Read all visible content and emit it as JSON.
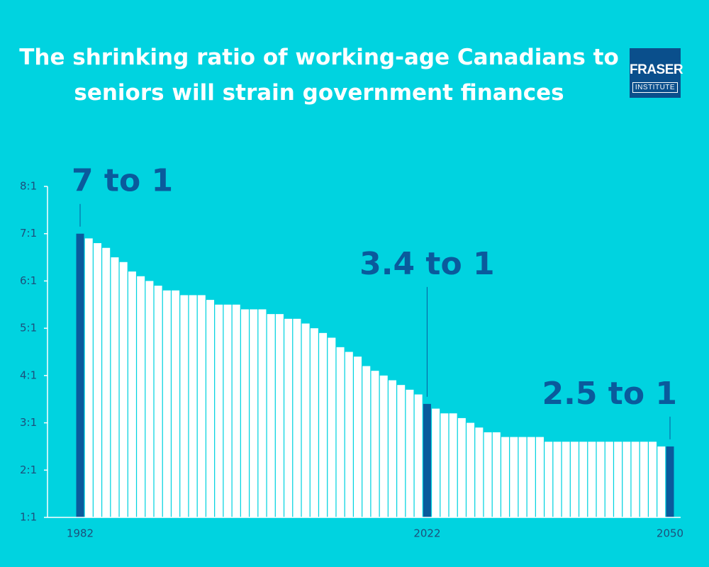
{
  "logo": {
    "name": "FRASER",
    "sub": "INSTITUTE"
  },
  "chart_data": {
    "type": "bar",
    "title": "The shrinking ratio of working-age Canadians to seniors will strain government finances",
    "categories": [
      "1982",
      null,
      null,
      null,
      null,
      null,
      null,
      null,
      null,
      null,
      null,
      null,
      null,
      null,
      null,
      null,
      null,
      null,
      null,
      null,
      null,
      null,
      null,
      null,
      null,
      null,
      null,
      null,
      null,
      null,
      null,
      null,
      null,
      null,
      null,
      null,
      null,
      null,
      null,
      null,
      "2022",
      null,
      null,
      null,
      null,
      null,
      null,
      null,
      null,
      null,
      null,
      null,
      null,
      null,
      null,
      null,
      null,
      null,
      null,
      null,
      null,
      null,
      null,
      null,
      null,
      null,
      null,
      null,
      "2050"
    ],
    "values": [
      7.0,
      6.9,
      6.8,
      6.7,
      6.5,
      6.4,
      6.2,
      6.1,
      6.0,
      5.9,
      5.8,
      5.8,
      5.7,
      5.7,
      5.7,
      5.6,
      5.5,
      5.5,
      5.5,
      5.4,
      5.4,
      5.4,
      5.3,
      5.3,
      5.2,
      5.2,
      5.1,
      5.0,
      4.9,
      4.8,
      4.6,
      4.5,
      4.4,
      4.2,
      4.1,
      4.0,
      3.9,
      3.8,
      3.7,
      3.6,
      3.4,
      3.3,
      3.2,
      3.2,
      3.1,
      3.0,
      2.9,
      2.8,
      2.8,
      2.7,
      2.7,
      2.7,
      2.7,
      2.7,
      2.6,
      2.6,
      2.6,
      2.6,
      2.6,
      2.6,
      2.6,
      2.6,
      2.6,
      2.6,
      2.6,
      2.6,
      2.6,
      2.5,
      2.5
    ],
    "color": "#ffffff",
    "highlight_color": "#0a5a9c",
    "annotations": [
      {
        "text": "7 to 1",
        "category": "1982"
      },
      {
        "text": "3.4 to 1",
        "category": "2022"
      },
      {
        "text": "2.5 to 1",
        "category": "2050"
      }
    ],
    "ylim": [
      1,
      8
    ],
    "yticks": [
      {
        "value": 1,
        "label": "1:1"
      },
      {
        "value": 2,
        "label": "2:1"
      },
      {
        "value": 3,
        "label": "3:1"
      },
      {
        "value": 4,
        "label": "4:1"
      },
      {
        "value": 5,
        "label": "5:1"
      },
      {
        "value": 6,
        "label": "6:1"
      },
      {
        "value": 7,
        "label": "7:1"
      },
      {
        "value": 8,
        "label": "8:1"
      }
    ],
    "grid": false
  }
}
